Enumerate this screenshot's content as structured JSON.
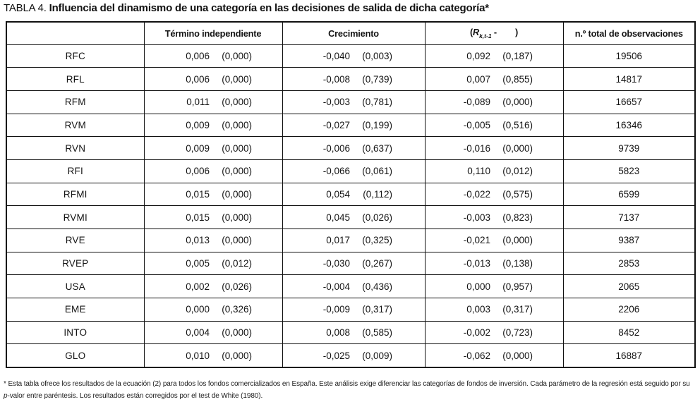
{
  "title": {
    "label": "TABLA 4.",
    "text": "Influencia del dinamismo de una categoría en las decisiones de salida de dicha categoría*"
  },
  "table": {
    "headers": {
      "category": "",
      "termino": "Término independiente",
      "crecimiento": "Crecimiento",
      "r_open": "(",
      "r_var": "R",
      "r_sub": "k,t-1",
      "r_minus": " -",
      "r_close": ")",
      "observaciones": "n.º total de observaciones"
    },
    "rows": [
      {
        "label": "RFC",
        "termino": "0,006",
        "termino_p": "(0,000)",
        "crec": "-0,040",
        "crec_p": "(0,003)",
        "r": "0,092",
        "r_p": "(0,187)",
        "obs": "19506"
      },
      {
        "label": "RFL",
        "termino": "0,006",
        "termino_p": "(0,000)",
        "crec": "-0,008",
        "crec_p": "(0,739)",
        "r": "0,007",
        "r_p": "(0,855)",
        "obs": "14817"
      },
      {
        "label": "RFM",
        "termino": "0,011",
        "termino_p": "(0,000)",
        "crec": "-0,003",
        "crec_p": "(0,781)",
        "r": "-0,089",
        "r_p": "(0,000)",
        "obs": "16657"
      },
      {
        "label": "RVM",
        "termino": "0,009",
        "termino_p": "(0,000)",
        "crec": "-0,027",
        "crec_p": "(0,199)",
        "r": "-0,005",
        "r_p": "(0,516)",
        "obs": "16346"
      },
      {
        "label": "RVN",
        "termino": "0,009",
        "termino_p": "(0,000)",
        "crec": "-0,006",
        "crec_p": "(0,637)",
        "r": "-0,016",
        "r_p": "(0,000)",
        "obs": "9739"
      },
      {
        "label": "RFI",
        "termino": "0,006",
        "termino_p": "(0,000)",
        "crec": "-0,066",
        "crec_p": "(0,061)",
        "r": "0,110",
        "r_p": "(0,012)",
        "obs": "5823"
      },
      {
        "label": "RFMI",
        "termino": "0,015",
        "termino_p": "(0,000)",
        "crec": "0,054",
        "crec_p": "(0,112)",
        "r": "-0,022",
        "r_p": "(0,575)",
        "obs": "6599"
      },
      {
        "label": "RVMI",
        "termino": "0,015",
        "termino_p": "(0,000)",
        "crec": "0,045",
        "crec_p": "(0,026)",
        "r": "-0,003",
        "r_p": "(0,823)",
        "obs": "7137"
      },
      {
        "label": "RVE",
        "termino": "0,013",
        "termino_p": "(0,000)",
        "crec": "0,017",
        "crec_p": "(0,325)",
        "r": "-0,021",
        "r_p": "(0,000)",
        "obs": "9387"
      },
      {
        "label": "RVEP",
        "termino": "0,005",
        "termino_p": "(0,012)",
        "crec": "-0,030",
        "crec_p": "(0,267)",
        "r": "-0,013",
        "r_p": "(0,138)",
        "obs": "2853"
      },
      {
        "label": "USA",
        "termino": "0,002",
        "termino_p": "(0,026)",
        "crec": "-0,004",
        "crec_p": "(0,436)",
        "r": "0,000",
        "r_p": "(0,957)",
        "obs": "2065"
      },
      {
        "label": "EME",
        "termino": "0,000",
        "termino_p": "(0,326)",
        "crec": "-0,009",
        "crec_p": "(0,317)",
        "r": "0,003",
        "r_p": "(0,317)",
        "obs": "2206"
      },
      {
        "label": "INTO",
        "termino": "0,004",
        "termino_p": "(0,000)",
        "crec": "0,008",
        "crec_p": "(0,585)",
        "r": "-0,002",
        "r_p": "(0,723)",
        "obs": "8452"
      },
      {
        "label": "GLO",
        "termino": "0,010",
        "termino_p": "(0,000)",
        "crec": "-0,025",
        "crec_p": "(0,009)",
        "r": "-0,062",
        "r_p": "(0,000)",
        "obs": "16887"
      }
    ]
  },
  "footnote": {
    "part1": "* Esta tabla ofrece los resultados de la ecuación (2) para todos los fondos comercializados en España. Este análisis exige diferenciar las categorías de fondos de inversión. Cada parámetro de la regresión está seguido por su ",
    "p_italic": "p",
    "part2": "-valor entre paréntesis. Los resultados están corregidos por el test de White (1980)."
  }
}
